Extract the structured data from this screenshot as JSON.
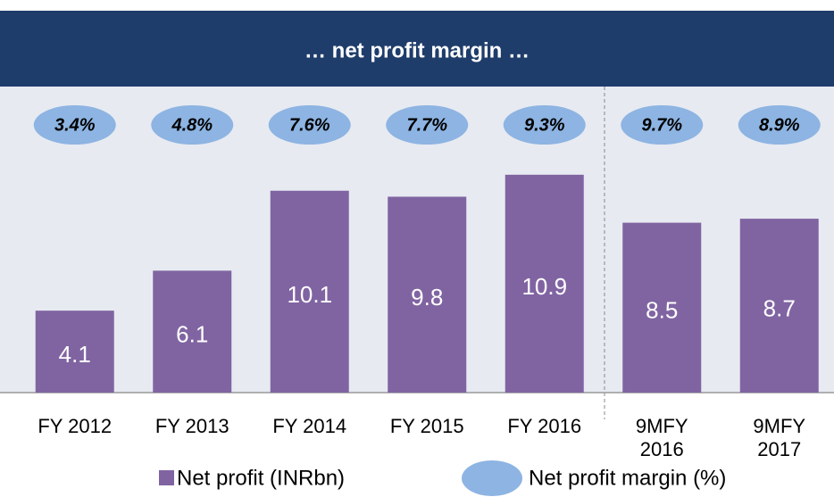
{
  "chart_data": {
    "type": "bar",
    "title": "… net profit margin …",
    "categories": [
      "FY 2012",
      "FY 2013",
      "FY 2014",
      "FY 2015",
      "FY 2016",
      "9MFY 2016",
      "9MFY 2017"
    ],
    "series": [
      {
        "name": "Net profit (INRbn)",
        "color": "#8064a2",
        "values": [
          4.1,
          6.1,
          10.1,
          9.8,
          10.9,
          8.5,
          8.7
        ]
      },
      {
        "name": "Net profit margin (%)",
        "color": "#8db4e2",
        "values": [
          3.4,
          4.8,
          7.6,
          7.7,
          9.3,
          9.7,
          8.9
        ],
        "value_labels": [
          "3.4%",
          "4.8%",
          "7.6%",
          "7.7%",
          "9.3%",
          "9.7%",
          "8.9%"
        ]
      }
    ],
    "ylim": [
      0,
      15
    ]
  }
}
